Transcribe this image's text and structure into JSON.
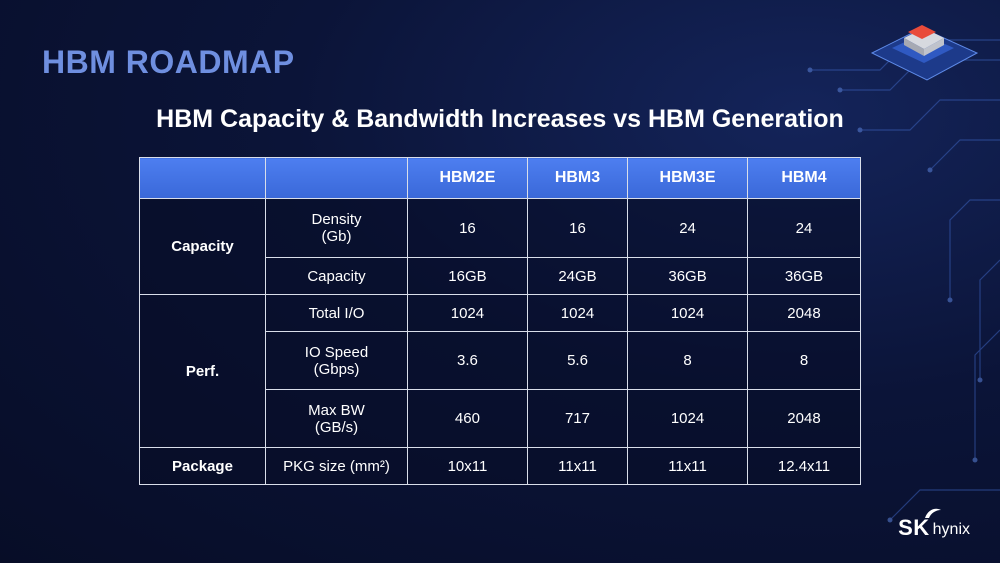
{
  "slide": {
    "title": "HBM ROADMAP",
    "subtitle": "HBM Capacity & Bandwidth Increases vs HBM Generation"
  },
  "table": {
    "headers": [
      "",
      "",
      "HBM2E",
      "HBM3",
      "HBM3E",
      "HBM4"
    ],
    "groups": {
      "capacity": "Capacity",
      "perf": "Perf.",
      "package": "Package"
    },
    "rows": {
      "density": {
        "metric": "Density\n(Gb)",
        "values": [
          "16",
          "16",
          "24",
          "24"
        ]
      },
      "capacity": {
        "metric": "Capacity",
        "values": [
          "16GB",
          "24GB",
          "36GB",
          "36GB"
        ]
      },
      "total_io": {
        "metric": "Total I/O",
        "values": [
          "1024",
          "1024",
          "1024",
          "2048"
        ]
      },
      "io_speed": {
        "metric": "IO Speed\n(Gbps)",
        "values": [
          "3.6",
          "5.6",
          "8",
          "8"
        ]
      },
      "max_bw": {
        "metric": "Max BW\n(GB/s)",
        "values": [
          "460",
          "717",
          "1024",
          "2048"
        ]
      },
      "pkg_size": {
        "metric": "PKG size (mm²)",
        "values": [
          "10x11",
          "11x11",
          "11x11",
          "12.4x11"
        ]
      }
    }
  },
  "logo": {
    "brand": "SK",
    "name": "hynix"
  },
  "colors": {
    "title": "#6f8fe0",
    "header": "#4171e4",
    "background": "#0b1438"
  },
  "icons": [
    "circuit-decoration",
    "chip-icon",
    "sk-wing-icon"
  ]
}
